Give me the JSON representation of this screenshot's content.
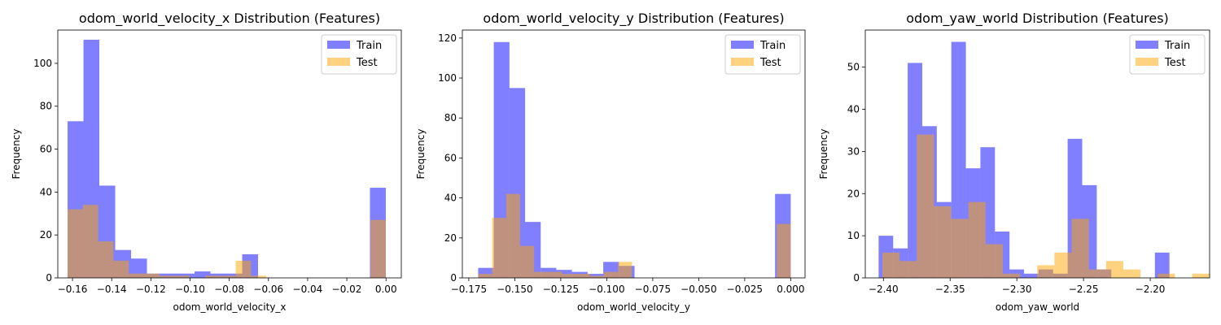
{
  "colors": {
    "train": "#0000ff",
    "test": "#ffa500",
    "bar_alpha": 0.5
  },
  "chart_data": [
    {
      "type": "histogram",
      "title": "odom_world_velocity_x Distribution (Features)",
      "xlabel": "odom_world_velocity_x",
      "ylabel": "Frequency",
      "xlim": [
        -0.1675,
        0.0078
      ],
      "ylim": [
        0,
        115.5
      ],
      "xticks": [
        -0.16,
        -0.14,
        -0.12,
        -0.1,
        -0.08,
        -0.06,
        -0.04,
        -0.02,
        0.0
      ],
      "xtick_labels": [
        "−0.16",
        "−0.14",
        "−0.12",
        "−0.10",
        "−0.08",
        "−0.06",
        "−0.04",
        "−0.02",
        "0.00"
      ],
      "yticks": [
        0,
        20,
        40,
        60,
        80,
        100
      ],
      "ytick_labels": [
        "0",
        "20",
        "40",
        "60",
        "80",
        "100"
      ],
      "legend": {
        "position": "top-right",
        "entries": [
          "Train",
          "Test"
        ]
      },
      "series": [
        {
          "name": "Train",
          "bins": [
            [
              -0.1625,
              -0.1544,
              73
            ],
            [
              -0.1544,
              -0.1463,
              111
            ],
            [
              -0.1463,
              -0.1382,
              43
            ],
            [
              -0.1382,
              -0.1301,
              13
            ],
            [
              -0.1301,
              -0.122,
              9
            ],
            [
              -0.122,
              -0.1139,
              2
            ],
            [
              -0.1139,
              -0.1058,
              2
            ],
            [
              -0.1058,
              -0.0977,
              2
            ],
            [
              -0.0977,
              -0.0896,
              3
            ],
            [
              -0.0896,
              -0.0815,
              2
            ],
            [
              -0.0815,
              -0.0734,
              2
            ],
            [
              -0.0734,
              -0.0653,
              11
            ],
            [
              -0.0082,
              -0.0001,
              42
            ]
          ]
        },
        {
          "name": "Test",
          "bins": [
            [
              -0.1625,
              -0.1547,
              32
            ],
            [
              -0.1547,
              -0.1469,
              34
            ],
            [
              -0.1469,
              -0.1391,
              17
            ],
            [
              -0.1391,
              -0.1313,
              8
            ],
            [
              -0.1313,
              -0.1235,
              2
            ],
            [
              -0.1235,
              -0.1157,
              2
            ],
            [
              -0.1157,
              -0.1079,
              1
            ],
            [
              -0.1079,
              -0.1001,
              1
            ],
            [
              -0.0923,
              -0.0845,
              1
            ],
            [
              -0.0845,
              -0.0767,
              1
            ],
            [
              -0.0767,
              -0.0689,
              8
            ],
            [
              -0.0689,
              -0.0611,
              1
            ],
            [
              -0.0079,
              -0.0001,
              27
            ]
          ]
        }
      ]
    },
    {
      "type": "histogram",
      "title": "odom_world_velocity_y Distribution (Features)",
      "xlabel": "odom_world_velocity_y",
      "ylabel": "Frequency",
      "xlim": [
        -0.1785,
        0.0078
      ],
      "ylim": [
        0,
        124
      ],
      "xticks": [
        -0.175,
        -0.15,
        -0.125,
        -0.1,
        -0.075,
        -0.05,
        -0.025,
        0.0
      ],
      "xtick_labels": [
        "−0.175",
        "−0.150",
        "−0.125",
        "−0.100",
        "−0.075",
        "−0.050",
        "−0.025",
        "0.000"
      ],
      "yticks": [
        0,
        20,
        40,
        60,
        80,
        100,
        120
      ],
      "ytick_labels": [
        "0",
        "20",
        "40",
        "60",
        "80",
        "100",
        "120"
      ],
      "legend": {
        "position": "top-right",
        "entries": [
          "Train",
          "Test"
        ]
      },
      "series": [
        {
          "name": "Train",
          "bins": [
            [
              -0.1699,
              -0.1614,
              5
            ],
            [
              -0.1614,
              -0.1529,
              118
            ],
            [
              -0.1529,
              -0.1444,
              95
            ],
            [
              -0.1444,
              -0.1359,
              28
            ],
            [
              -0.1359,
              -0.1274,
              5
            ],
            [
              -0.1274,
              -0.1189,
              4
            ],
            [
              -0.1189,
              -0.1104,
              3
            ],
            [
              -0.1104,
              -0.1019,
              2
            ],
            [
              -0.1019,
              -0.0934,
              8
            ],
            [
              -0.0934,
              -0.0849,
              6
            ],
            [
              -0.0085,
              0.0,
              42
            ]
          ]
        },
        {
          "name": "Test",
          "bins": [
            [
              -0.1699,
              -0.1623,
              2
            ],
            [
              -0.1623,
              -0.1547,
              30
            ],
            [
              -0.1547,
              -0.1471,
              42
            ],
            [
              -0.1471,
              -0.1395,
              16
            ],
            [
              -0.1395,
              -0.1319,
              3
            ],
            [
              -0.1319,
              -0.1243,
              3
            ],
            [
              -0.1243,
              -0.1167,
              2
            ],
            [
              -0.1167,
              -0.1091,
              2
            ],
            [
              -0.1091,
              -0.1015,
              1
            ],
            [
              -0.1015,
              -0.0939,
              3
            ],
            [
              -0.0939,
              -0.0863,
              8
            ],
            [
              -0.0076,
              0.0,
              27
            ]
          ]
        }
      ]
    },
    {
      "type": "histogram",
      "title": "odom_yaw_world Distribution (Features)",
      "xlabel": "odom_yaw_world",
      "ylabel": "Frequency",
      "xlim": [
        -2.4136,
        -2.1555
      ],
      "ylim": [
        0,
        58.8
      ],
      "xticks": [
        -2.4,
        -2.35,
        -2.3,
        -2.25,
        -2.2
      ],
      "xtick_labels": [
        "−2.40",
        "−2.35",
        "−2.30",
        "−2.25",
        "−2.20"
      ],
      "yticks": [
        0,
        10,
        20,
        30,
        40,
        50
      ],
      "ytick_labels": [
        "0",
        "10",
        "20",
        "30",
        "40",
        "50"
      ],
      "legend": {
        "position": "top-right",
        "entries": [
          "Train",
          "Test"
        ]
      },
      "series": [
        {
          "name": "Train",
          "bins": [
            [
              -2.4036,
              -2.3927,
              10
            ],
            [
              -2.3927,
              -2.3818,
              7
            ],
            [
              -2.3818,
              -2.3709,
              51
            ],
            [
              -2.3709,
              -2.36,
              36
            ],
            [
              -2.36,
              -2.3491,
              18
            ],
            [
              -2.3491,
              -2.3382,
              56
            ],
            [
              -2.3382,
              -2.3273,
              26
            ],
            [
              -2.3273,
              -2.3164,
              31
            ],
            [
              -2.3164,
              -2.3055,
              11
            ],
            [
              -2.3055,
              -2.2946,
              2
            ],
            [
              -2.2946,
              -2.2837,
              1
            ],
            [
              -2.2837,
              -2.2728,
              2
            ],
            [
              -2.2728,
              -2.2619,
              1
            ],
            [
              -2.2619,
              -2.251,
              33
            ],
            [
              -2.251,
              -2.2401,
              22
            ],
            [
              -2.2401,
              -2.2292,
              2
            ],
            [
              -2.1965,
              -2.1856,
              6
            ]
          ]
        },
        {
          "name": "Test",
          "bins": [
            [
              -2.4008,
              -2.3879,
              6
            ],
            [
              -2.3879,
              -2.375,
              4
            ],
            [
              -2.375,
              -2.3621,
              34
            ],
            [
              -2.3621,
              -2.3492,
              17
            ],
            [
              -2.3492,
              -2.3363,
              14
            ],
            [
              -2.3363,
              -2.3234,
              18
            ],
            [
              -2.3234,
              -2.3105,
              8
            ],
            [
              -2.3105,
              -2.2976,
              1
            ],
            [
              -2.2847,
              -2.2718,
              3
            ],
            [
              -2.2718,
              -2.2589,
              6
            ],
            [
              -2.2589,
              -2.246,
              14
            ],
            [
              -2.246,
              -2.2331,
              2
            ],
            [
              -2.2331,
              -2.2202,
              4
            ],
            [
              -2.2202,
              -2.2073,
              2
            ],
            [
              -2.1944,
              -2.1815,
              1
            ],
            [
              -2.1686,
              -2.1557,
              1
            ]
          ]
        }
      ]
    }
  ]
}
